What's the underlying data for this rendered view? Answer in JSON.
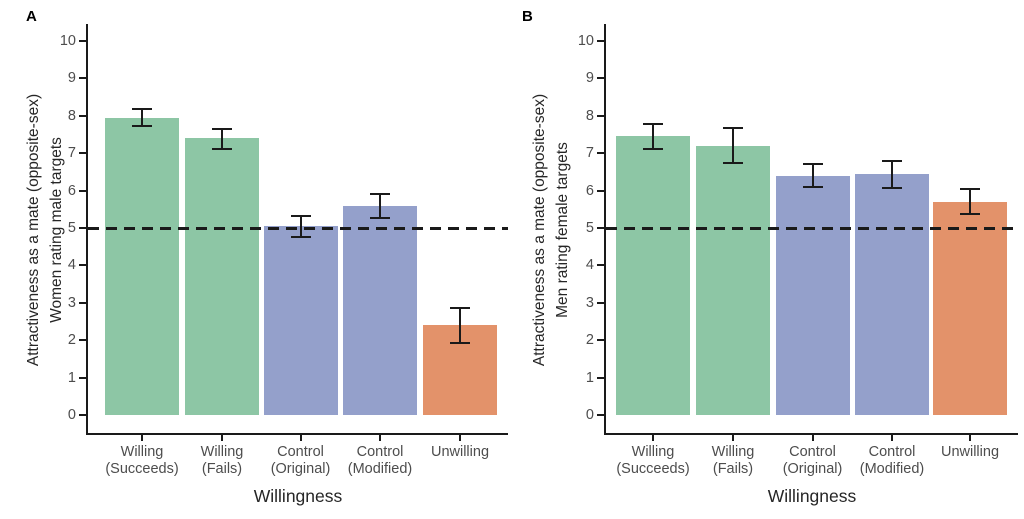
{
  "figure_colors": {
    "willing_green": "#8DC6A5",
    "control_blue": "#94A0CB",
    "unwilling_orange": "#E3926A",
    "axis_black": "#1a1a1a",
    "tick_label_gray": "#4d4d4d"
  },
  "chart_data": [
    {
      "type": "bar",
      "panel": "A",
      "ylabel": "Attractiveness as a mate (opposite-sex) Women rating male targets",
      "ylabel_line1": "Attractiveness as a mate (opposite-sex)",
      "ylabel_line2": "Women rating male targets",
      "xlabel": "Willingness",
      "ylim": [
        0,
        10
      ],
      "yticks": [
        0,
        1,
        2,
        3,
        4,
        5,
        6,
        7,
        8,
        9,
        10
      ],
      "reference_line_y": 5,
      "grid": false,
      "legend": "none",
      "categories": [
        "Willing (Succeeds)",
        "Willing (Fails)",
        "Control (Original)",
        "Control (Modified)",
        "Unwilling"
      ],
      "category_labels": [
        [
          "Willing",
          "(Succeeds)"
        ],
        [
          "Willing",
          "(Fails)"
        ],
        [
          "Control",
          "(Original)"
        ],
        [
          "Control",
          "(Modified)"
        ],
        [
          "Unwilling"
        ]
      ],
      "values": [
        7.95,
        7.4,
        5.05,
        5.6,
        2.4
      ],
      "error_low": [
        7.72,
        7.1,
        4.75,
        5.28,
        1.92
      ],
      "error_high": [
        8.18,
        7.65,
        5.32,
        5.9,
        2.85
      ],
      "bar_colors": [
        "#8DC6A5",
        "#8DC6A5",
        "#94A0CB",
        "#94A0CB",
        "#E3926A"
      ]
    },
    {
      "type": "bar",
      "panel": "B",
      "ylabel": "Attractiveness as a mate (opposite-sex) Men rating female targets",
      "ylabel_line1": "Attractiveness as a mate (opposite-sex)",
      "ylabel_line2": "Men rating female targets",
      "xlabel": "Willingness",
      "ylim": [
        0,
        10
      ],
      "yticks": [
        0,
        1,
        2,
        3,
        4,
        5,
        6,
        7,
        8,
        9,
        10
      ],
      "reference_line_y": 5,
      "grid": false,
      "legend": "none",
      "categories": [
        "Willing (Succeeds)",
        "Willing (Fails)",
        "Control (Original)",
        "Control (Modified)",
        "Unwilling"
      ],
      "category_labels": [
        [
          "Willing",
          "(Succeeds)"
        ],
        [
          "Willing",
          "(Fails)"
        ],
        [
          "Control",
          "(Original)"
        ],
        [
          "Control",
          "(Modified)"
        ],
        [
          "Unwilling"
        ]
      ],
      "values": [
        7.45,
        7.2,
        6.4,
        6.45,
        5.7
      ],
      "error_low": [
        7.12,
        6.73,
        6.1,
        6.08,
        5.37
      ],
      "error_high": [
        7.78,
        7.67,
        6.72,
        6.8,
        6.03
      ],
      "bar_colors": [
        "#8DC6A5",
        "#8DC6A5",
        "#94A0CB",
        "#94A0CB",
        "#E3926A"
      ]
    }
  ]
}
